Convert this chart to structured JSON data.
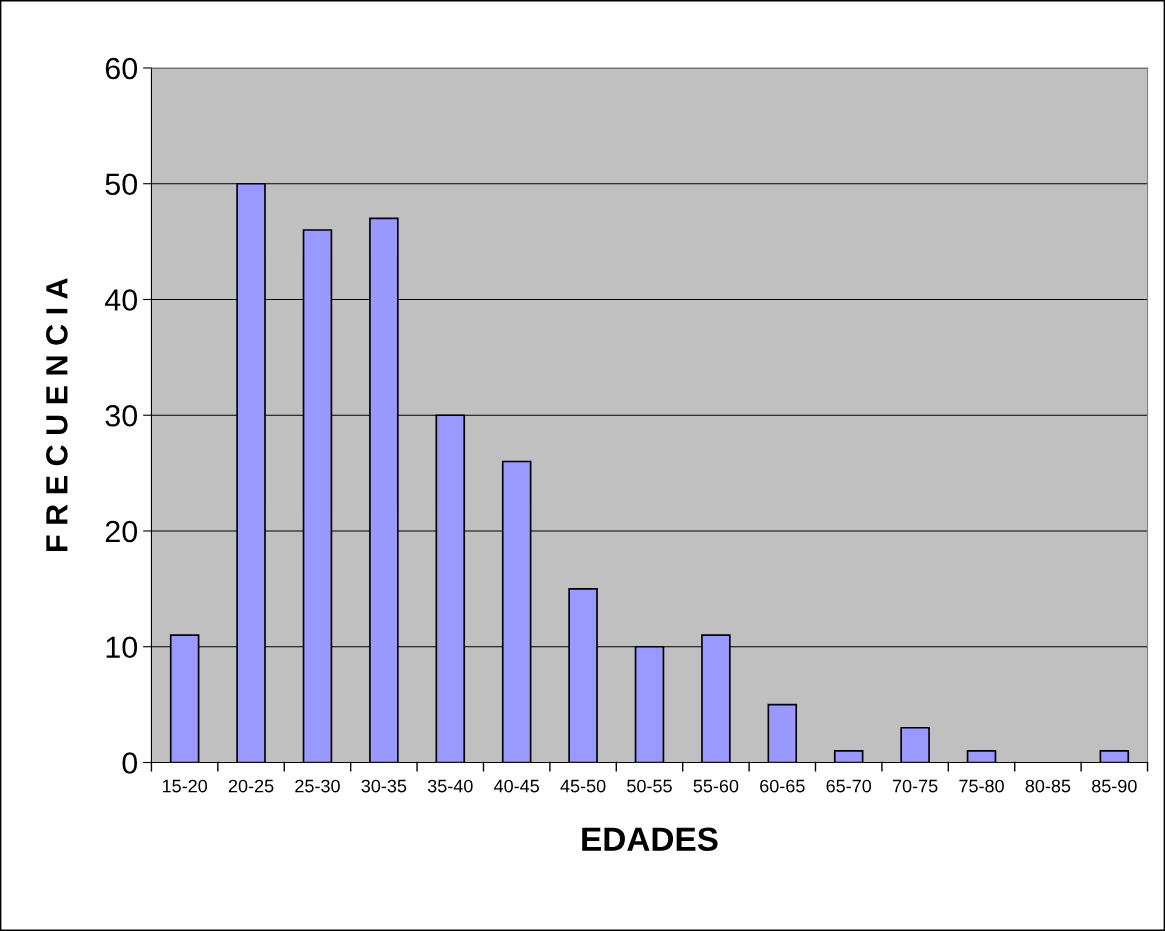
{
  "chart_data": {
    "type": "bar",
    "xlabel": "EDADES",
    "ylabel": "F R E C U E N C I A",
    "categories": [
      "15-20",
      "20-25",
      "25-30",
      "30-35",
      "35-40",
      "40-45",
      "45-50",
      "50-55",
      "55-60",
      "60-65",
      "65-70",
      "70-75",
      "75-80",
      "80-85",
      "85-90"
    ],
    "values": [
      11,
      50,
      46,
      47,
      30,
      26,
      15,
      10,
      11,
      5,
      1,
      3,
      1,
      0,
      1
    ],
    "color": "#9999ff",
    "ylim": [
      0,
      60
    ],
    "yticks": [
      0,
      10,
      20,
      30,
      40,
      50,
      60
    ],
    "grid": "y"
  }
}
